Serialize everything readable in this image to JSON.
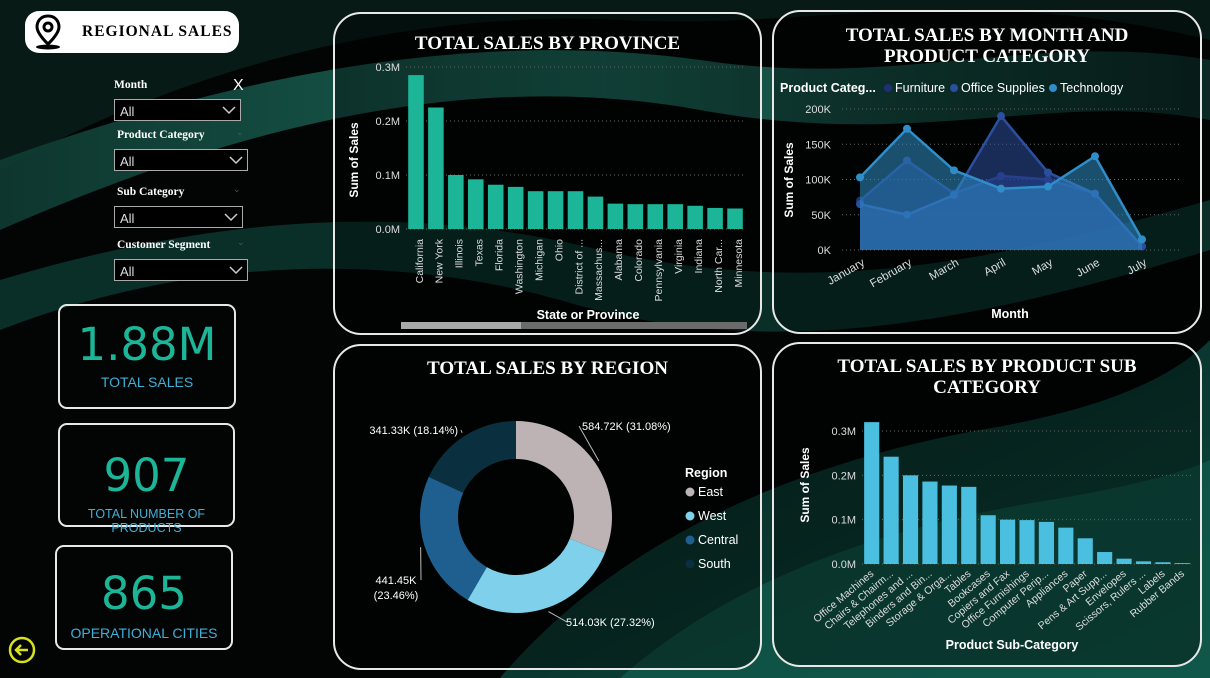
{
  "header": {
    "title": "REGIONAL SALES"
  },
  "filters": {
    "clear_label": "X",
    "items": [
      {
        "label": "Month",
        "value": "All"
      },
      {
        "label": "Product Category",
        "value": "All"
      },
      {
        "label": "Sub Category",
        "value": "All"
      },
      {
        "label": "Customer Segment",
        "value": "All"
      }
    ]
  },
  "kpis": [
    {
      "value": "1.88M",
      "label": "TOTAL SALES"
    },
    {
      "value": "907",
      "label": "TOTAL NUMBER OF PRODUCTS"
    },
    {
      "value": "865",
      "label": "OPERATIONAL CITIES"
    }
  ],
  "colors": {
    "teal": "#1cb597",
    "light_blue": "#4bbfe0",
    "kpi_label": "#3fb0d9"
  },
  "chart_data": [
    {
      "type": "bar",
      "title": "TOTAL SALES BY PROVINCE",
      "xlabel": "State or Province",
      "ylabel": "Sum of Sales",
      "yticks": [
        "0.0M",
        "0.1M",
        "0.2M",
        "0.3M"
      ],
      "ylim": [
        0,
        300000
      ],
      "categories": [
        "California",
        "New York",
        "Illinois",
        "Texas",
        "Florida",
        "Washington",
        "Michigan",
        "Ohio",
        "District of ...",
        "Massachus...",
        "Alabama",
        "Colorado",
        "Pennsylvania",
        "Virginia",
        "Indiana",
        "North Car...",
        "Minnesota"
      ],
      "values": [
        285000,
        225000,
        100000,
        92000,
        82000,
        78000,
        70000,
        70000,
        70000,
        60000,
        47000,
        46000,
        46000,
        46000,
        43000,
        39000,
        38000
      ],
      "color": "#1cb597"
    },
    {
      "type": "area",
      "title": "TOTAL SALES BY MONTH AND PRODUCT CATEGORY",
      "legend_title": "Product Categ...",
      "xlabel": "Month",
      "ylabel": "Sum of Sales",
      "yticks": [
        "0K",
        "50K",
        "100K",
        "150K",
        "200K"
      ],
      "ylim": [
        0,
        200000
      ],
      "categories": [
        "January",
        "February",
        "March",
        "April",
        "May",
        "June",
        "July"
      ],
      "series": [
        {
          "name": "Furniture",
          "values": [
            70000,
            127000,
            80000,
            105000,
            100000,
            80000,
            5000
          ],
          "color": "#1f2f7a"
        },
        {
          "name": "Office Supplies",
          "values": [
            65000,
            50000,
            78000,
            190000,
            110000,
            80000,
            5000
          ],
          "color": "#2b4f9f"
        },
        {
          "name": "Technology",
          "values": [
            103000,
            172000,
            113000,
            87000,
            90000,
            133000,
            15000
          ],
          "color": "#2f8ec9"
        }
      ]
    },
    {
      "type": "pie",
      "title": "TOTAL SALES BY REGION",
      "legend_title": "Region",
      "slices": [
        {
          "name": "East",
          "value": 584720,
          "label": "584.72K (31.08%)",
          "color": "#bdb3b5"
        },
        {
          "name": "West",
          "value": 514030,
          "label": "514.03K (27.32%)",
          "color": "#7fd0ea"
        },
        {
          "name": "Central",
          "value": 441450,
          "label_line1": "441.45K",
          "label_line2": "(23.46%)",
          "color": "#1f5f8f"
        },
        {
          "name": "South",
          "value": 341330,
          "label": "341.33K (18.14%)",
          "color": "#0a2f3f"
        }
      ]
    },
    {
      "type": "bar",
      "title": "TOTAL SALES BY PRODUCT SUB CATEGORY",
      "xlabel": "Product Sub-Category",
      "ylabel": "Sum of Sales",
      "yticks": [
        "0.0M",
        "0.1M",
        "0.2M",
        "0.3M"
      ],
      "ylim": [
        0,
        300000
      ],
      "categories": [
        "Office Machines",
        "Chairs & Chairm...",
        "Telephones and ...",
        "Binders and Bin...",
        "Storage & Orga...",
        "Tables",
        "Bookcases",
        "Copiers and Fax",
        "Office Furnishings",
        "Computer Perip...",
        "Appliances",
        "Paper",
        "Pens & Art Supp...",
        "Envelopes",
        "Scissors, Rulers ...",
        "Labels",
        "Rubber Bands"
      ],
      "values": [
        320000,
        242000,
        200000,
        186000,
        177000,
        174000,
        110000,
        100000,
        99000,
        95000,
        82000,
        58000,
        27000,
        12000,
        6000,
        4000,
        2000
      ],
      "color": "#4bbfe0"
    }
  ]
}
